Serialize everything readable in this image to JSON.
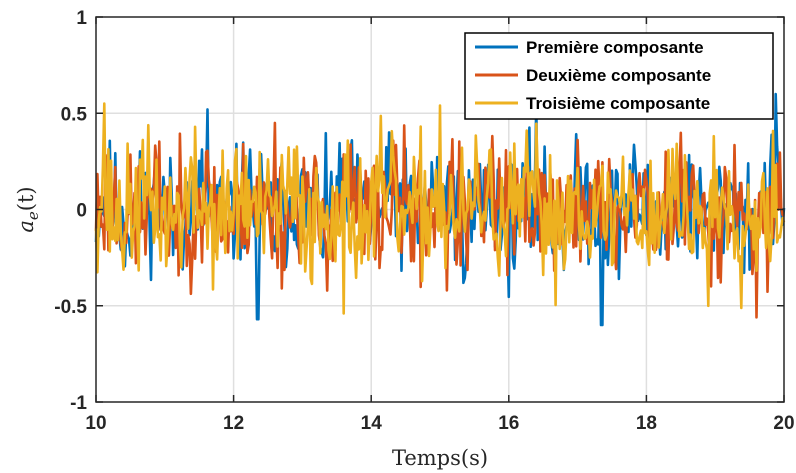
{
  "chart_data": {
    "type": "line",
    "xlabel": "Temps(s)",
    "ylabel": "a_e(t)",
    "ylabel_parts": {
      "base": "a",
      "sub": "e",
      "rest": "(t)"
    },
    "xlim": [
      10,
      20
    ],
    "ylim": [
      -1,
      1
    ],
    "xticks": [
      10,
      12,
      14,
      16,
      18,
      20
    ],
    "yticks": [
      -1,
      -0.5,
      0,
      0.5,
      1
    ],
    "xtick_labels": [
      "10",
      "12",
      "14",
      "16",
      "18",
      "20"
    ],
    "ytick_labels": [
      "-1",
      "-0.5",
      "0",
      "0.5",
      "1"
    ],
    "grid": true,
    "legend_position": "top-right",
    "series": [
      {
        "name": "Première composante",
        "color": "#0072BD",
        "seed": 11,
        "amp": 0.2,
        "spikes": [
          [
            11.62,
            0.52
          ],
          [
            12.35,
            -0.57
          ],
          [
            16.4,
            0.55
          ],
          [
            17.35,
            -0.6
          ],
          [
            19.88,
            0.6
          ]
        ]
      },
      {
        "name": "Deuxième composante",
        "color": "#D95319",
        "seed": 23,
        "amp": 0.21,
        "spikes": [
          [
            12.6,
            0.45
          ],
          [
            15.1,
            -0.42
          ],
          [
            19.6,
            -0.56
          ]
        ]
      },
      {
        "name": "Troisième composante",
        "color": "#EDB120",
        "seed": 37,
        "amp": 0.22,
        "spikes": [
          [
            10.12,
            0.55
          ],
          [
            13.6,
            -0.54
          ],
          [
            15.0,
            0.54
          ],
          [
            18.9,
            -0.5
          ]
        ]
      }
    ],
    "samples_per_unit": 50
  }
}
